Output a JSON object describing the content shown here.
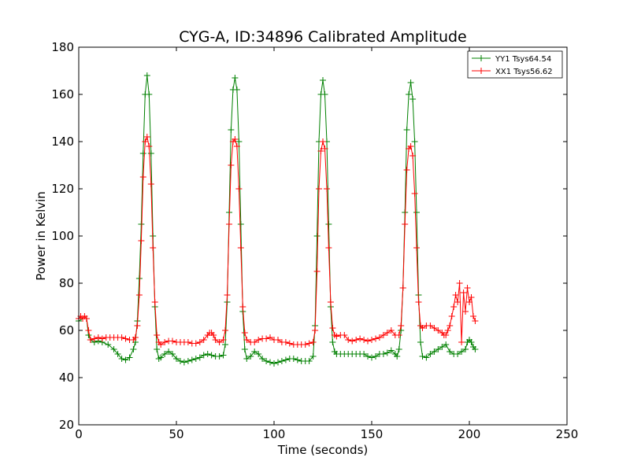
{
  "chart_data": {
    "type": "line",
    "title": "CYG-A, ID:34896 Calibrated Amplitude",
    "xlabel": "Time (seconds)",
    "ylabel": "Power in Kelvin",
    "xlim": [
      0,
      250
    ],
    "ylim": [
      20,
      180
    ],
    "xticks": [
      0,
      50,
      100,
      150,
      200,
      250
    ],
    "yticks": [
      20,
      40,
      60,
      80,
      100,
      120,
      140,
      160,
      180
    ],
    "grid": false,
    "legend_position": "top-right",
    "marker": "+",
    "series": [
      {
        "name": "YY1 Tsys64.54",
        "color": "#008000",
        "points": [
          [
            0,
            64
          ],
          [
            2,
            65
          ],
          [
            4,
            65
          ],
          [
            5,
            58
          ],
          [
            6,
            56
          ],
          [
            8,
            55
          ],
          [
            10,
            55.5
          ],
          [
            12,
            55
          ],
          [
            15,
            54
          ],
          [
            18,
            52
          ],
          [
            20,
            50
          ],
          [
            22,
            48
          ],
          [
            24,
            47.5
          ],
          [
            26,
            48.5
          ],
          [
            28,
            52
          ],
          [
            29,
            55
          ],
          [
            30,
            64
          ],
          [
            31,
            82
          ],
          [
            32,
            105
          ],
          [
            33,
            135
          ],
          [
            34,
            160
          ],
          [
            35,
            168
          ],
          [
            36,
            160
          ],
          [
            37,
            135
          ],
          [
            38,
            100
          ],
          [
            39,
            70
          ],
          [
            40,
            52
          ],
          [
            41,
            48
          ],
          [
            42,
            48.5
          ],
          [
            44,
            50
          ],
          [
            46,
            51
          ],
          [
            48,
            50
          ],
          [
            50,
            48
          ],
          [
            52,
            47
          ],
          [
            54,
            46.5
          ],
          [
            56,
            47
          ],
          [
            58,
            47.5
          ],
          [
            60,
            48
          ],
          [
            62,
            48.5
          ],
          [
            64,
            49.5
          ],
          [
            66,
            50
          ],
          [
            68,
            49.5
          ],
          [
            70,
            49
          ],
          [
            72,
            49
          ],
          [
            74,
            49.5
          ],
          [
            75,
            54
          ],
          [
            76,
            72
          ],
          [
            77,
            110
          ],
          [
            78,
            145
          ],
          [
            79,
            162
          ],
          [
            80,
            167
          ],
          [
            81,
            162
          ],
          [
            82,
            140
          ],
          [
            83,
            105
          ],
          [
            84,
            68
          ],
          [
            85,
            52
          ],
          [
            86,
            48
          ],
          [
            88,
            49
          ],
          [
            90,
            51
          ],
          [
            92,
            50
          ],
          [
            94,
            48
          ],
          [
            96,
            47
          ],
          [
            98,
            46.5
          ],
          [
            100,
            46
          ],
          [
            102,
            46.5
          ],
          [
            104,
            47
          ],
          [
            106,
            47.5
          ],
          [
            108,
            48
          ],
          [
            110,
            48
          ],
          [
            112,
            47.5
          ],
          [
            114,
            47
          ],
          [
            116,
            47
          ],
          [
            118,
            47
          ],
          [
            120,
            49
          ],
          [
            121,
            62
          ],
          [
            122,
            100
          ],
          [
            123,
            140
          ],
          [
            124,
            160
          ],
          [
            125,
            166
          ],
          [
            126,
            160
          ],
          [
            127,
            140
          ],
          [
            128,
            105
          ],
          [
            129,
            70
          ],
          [
            130,
            55
          ],
          [
            131,
            51
          ],
          [
            132,
            50
          ],
          [
            134,
            50
          ],
          [
            136,
            50
          ],
          [
            138,
            50
          ],
          [
            140,
            50
          ],
          [
            142,
            50
          ],
          [
            144,
            50
          ],
          [
            146,
            50
          ],
          [
            148,
            49
          ],
          [
            150,
            48.5
          ],
          [
            152,
            49
          ],
          [
            154,
            50
          ],
          [
            156,
            50
          ],
          [
            158,
            50.5
          ],
          [
            160,
            51.5
          ],
          [
            162,
            50
          ],
          [
            163,
            49
          ],
          [
            164,
            52
          ],
          [
            165,
            60
          ],
          [
            166,
            78
          ],
          [
            167,
            110
          ],
          [
            168,
            145
          ],
          [
            169,
            160
          ],
          [
            170,
            165
          ],
          [
            171,
            158
          ],
          [
            172,
            140
          ],
          [
            173,
            110
          ],
          [
            174,
            75
          ],
          [
            175,
            55
          ],
          [
            176,
            49
          ],
          [
            178,
            48.5
          ],
          [
            180,
            50
          ],
          [
            182,
            51
          ],
          [
            184,
            52
          ],
          [
            186,
            53
          ],
          [
            188,
            54
          ],
          [
            190,
            51
          ],
          [
            192,
            50
          ],
          [
            194,
            50
          ],
          [
            196,
            51
          ],
          [
            198,
            52
          ],
          [
            199,
            55
          ],
          [
            200,
            56
          ],
          [
            201,
            55
          ],
          [
            202,
            53
          ],
          [
            203,
            52
          ]
        ]
      },
      {
        "name": "XX1 Tsys56.62",
        "color": "#ff0000",
        "points": [
          [
            0,
            65
          ],
          [
            1,
            66
          ],
          [
            2,
            65
          ],
          [
            3,
            66
          ],
          [
            4,
            65
          ],
          [
            5,
            60
          ],
          [
            6,
            56
          ],
          [
            8,
            56.5
          ],
          [
            10,
            57
          ],
          [
            12,
            56.5
          ],
          [
            14,
            57
          ],
          [
            16,
            57
          ],
          [
            18,
            57
          ],
          [
            20,
            57
          ],
          [
            22,
            57
          ],
          [
            24,
            56.5
          ],
          [
            26,
            56
          ],
          [
            28,
            56
          ],
          [
            29,
            57
          ],
          [
            30,
            62
          ],
          [
            31,
            75
          ],
          [
            32,
            98
          ],
          [
            33,
            125
          ],
          [
            34,
            140
          ],
          [
            35,
            142
          ],
          [
            36,
            138
          ],
          [
            37,
            122
          ],
          [
            38,
            95
          ],
          [
            39,
            72
          ],
          [
            40,
            58
          ],
          [
            41,
            55
          ],
          [
            42,
            54
          ],
          [
            44,
            55
          ],
          [
            46,
            55.5
          ],
          [
            48,
            55.5
          ],
          [
            50,
            55
          ],
          [
            52,
            55
          ],
          [
            54,
            55
          ],
          [
            56,
            55
          ],
          [
            58,
            54.5
          ],
          [
            60,
            54.5
          ],
          [
            62,
            55
          ],
          [
            64,
            56
          ],
          [
            66,
            58
          ],
          [
            67,
            59
          ],
          [
            68,
            59
          ],
          [
            69,
            58
          ],
          [
            70,
            56
          ],
          [
            72,
            55
          ],
          [
            74,
            56
          ],
          [
            75,
            60
          ],
          [
            76,
            75
          ],
          [
            77,
            105
          ],
          [
            78,
            130
          ],
          [
            79,
            140
          ],
          [
            80,
            141
          ],
          [
            81,
            138
          ],
          [
            82,
            120
          ],
          [
            83,
            95
          ],
          [
            84,
            70
          ],
          [
            85,
            59
          ],
          [
            86,
            56
          ],
          [
            88,
            55
          ],
          [
            90,
            55
          ],
          [
            92,
            56
          ],
          [
            94,
            56.5
          ],
          [
            96,
            56.5
          ],
          [
            98,
            57
          ],
          [
            100,
            56
          ],
          [
            102,
            56
          ],
          [
            104,
            55
          ],
          [
            106,
            55
          ],
          [
            108,
            54.5
          ],
          [
            110,
            54
          ],
          [
            112,
            54
          ],
          [
            114,
            54
          ],
          [
            116,
            54
          ],
          [
            118,
            54.5
          ],
          [
            120,
            55
          ],
          [
            121,
            60
          ],
          [
            122,
            85
          ],
          [
            123,
            120
          ],
          [
            124,
            136
          ],
          [
            125,
            140
          ],
          [
            126,
            137
          ],
          [
            127,
            120
          ],
          [
            128,
            95
          ],
          [
            129,
            72
          ],
          [
            130,
            61
          ],
          [
            131,
            58
          ],
          [
            132,
            57.5
          ],
          [
            134,
            58
          ],
          [
            136,
            58
          ],
          [
            138,
            56
          ],
          [
            140,
            55.5
          ],
          [
            142,
            56
          ],
          [
            144,
            56.5
          ],
          [
            146,
            56
          ],
          [
            148,
            55.5
          ],
          [
            150,
            56
          ],
          [
            152,
            56.5
          ],
          [
            154,
            57
          ],
          [
            156,
            58
          ],
          [
            158,
            59
          ],
          [
            160,
            60
          ],
          [
            162,
            58
          ],
          [
            164,
            58
          ],
          [
            165,
            62
          ],
          [
            166,
            78
          ],
          [
            167,
            105
          ],
          [
            168,
            128
          ],
          [
            169,
            137
          ],
          [
            170,
            138
          ],
          [
            171,
            134
          ],
          [
            172,
            118
          ],
          [
            173,
            95
          ],
          [
            174,
            72
          ],
          [
            175,
            62
          ],
          [
            176,
            61
          ],
          [
            178,
            62
          ],
          [
            180,
            62
          ],
          [
            182,
            61
          ],
          [
            184,
            60
          ],
          [
            186,
            59
          ],
          [
            187,
            58
          ],
          [
            188,
            58
          ],
          [
            189,
            60
          ],
          [
            190,
            62
          ],
          [
            191,
            66
          ],
          [
            192,
            70
          ],
          [
            193,
            75
          ],
          [
            194,
            72
          ],
          [
            195,
            80
          ],
          [
            196,
            55
          ],
          [
            197,
            76
          ],
          [
            198,
            68
          ],
          [
            199,
            78
          ],
          [
            200,
            72
          ],
          [
            201,
            74
          ],
          [
            202,
            66
          ],
          [
            203,
            64
          ]
        ]
      }
    ]
  }
}
